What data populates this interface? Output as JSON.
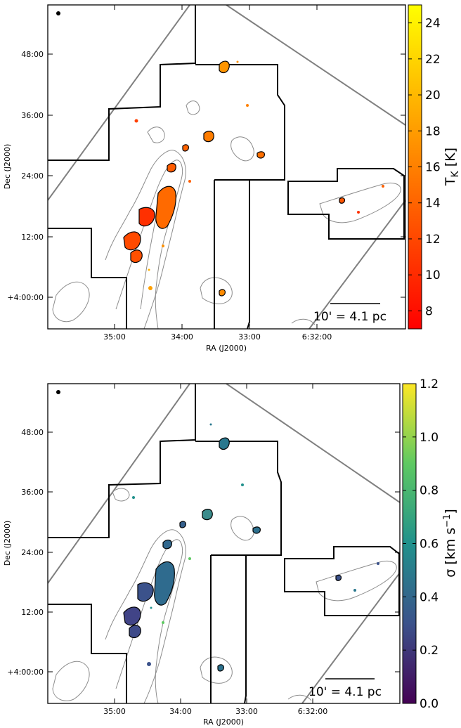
{
  "chart_data": [
    {
      "type": "heatmap",
      "panel": "top",
      "xlabel": "RA (J2000)",
      "ylabel": "Dec (J2000)",
      "x_ticks": [
        "35:00",
        "34:00",
        "33:00",
        "6:32:00"
      ],
      "y_ticks": [
        "48:00",
        "36:00",
        "24:00",
        "12:00",
        "+4:00:00"
      ],
      "colorbar": {
        "label": "T_K [K]",
        "label_main": "T",
        "label_sub": "K",
        "label_unit": " [K]",
        "colormap": "autumn",
        "range": [
          7,
          25
        ],
        "ticks": [
          "8",
          "10",
          "12",
          "14",
          "16",
          "18",
          "20",
          "22",
          "24"
        ]
      },
      "scale_bar_label": "10' = 4.1 pc"
    },
    {
      "type": "heatmap",
      "panel": "bottom",
      "xlabel": "RA (J2000)",
      "ylabel": "Dec (J2000)",
      "x_ticks": [
        "35:00",
        "34:00",
        "33:00",
        "6:32:00"
      ],
      "y_ticks": [
        "48:00",
        "36:00",
        "24:00",
        "12:00",
        "+4:00:00"
      ],
      "colorbar": {
        "label": "σ [km s⁻¹]",
        "label_main": "σ [km s",
        "label_sup": "−1",
        "label_end": "]",
        "colormap": "viridis",
        "range": [
          0.0,
          1.2
        ],
        "ticks": [
          "0.0",
          "0.2",
          "0.4",
          "0.6",
          "0.8",
          "1.0",
          "1.2"
        ]
      },
      "scale_bar_label": "10' = 4.1 pc"
    }
  ],
  "colors": {
    "footprint": "#000000",
    "contour": "#8c8c8c",
    "diagonal_lines": "#808080",
    "autumn": [
      "#ff0000",
      "#ff8000",
      "#ffff00"
    ],
    "viridis": [
      "#440154",
      "#3b528b",
      "#21918c",
      "#5ec962",
      "#fde725"
    ]
  }
}
